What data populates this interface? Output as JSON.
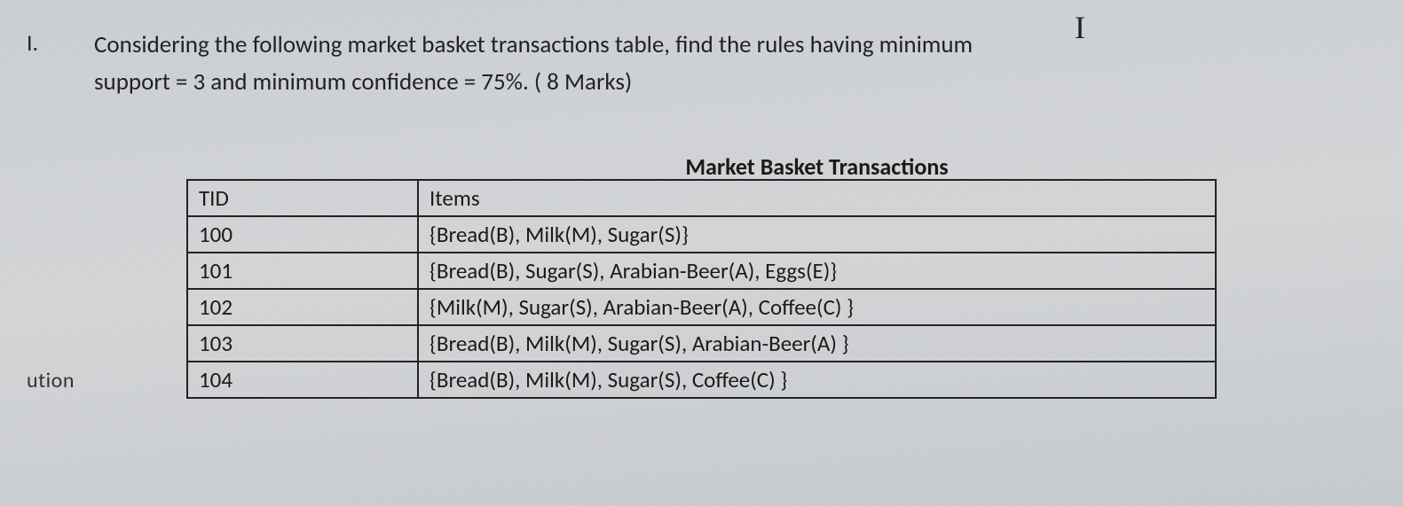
{
  "question": {
    "number": "I.",
    "text_line1": "Considering the following market basket transactions table, find the rules having minimum",
    "text_line2": "support = 3 and minimum confidence = 75%. ( 8 Marks)"
  },
  "cursor_glyph": "I",
  "table": {
    "title": "Market Basket Transactions",
    "headers": {
      "col1": "TID",
      "col2": "Items"
    },
    "rows": [
      {
        "tid": "100",
        "items": "{Bread(B), Milk(M), Sugar(S)}"
      },
      {
        "tid": "101",
        "items": "{Bread(B), Sugar(S), Arabian-Beer(A), Eggs(E)}"
      },
      {
        "tid": "102",
        "items": "{Milk(M), Sugar(S), Arabian-Beer(A), Coffee(C) }"
      },
      {
        "tid": "103",
        "items": "{Bread(B), Milk(M), Sugar(S), Arabian-Beer(A) }"
      },
      {
        "tid": "104",
        "items": "{Bread(B), Milk(M), Sugar(S), Coffee(C) }"
      }
    ]
  },
  "footer_fragment": "ution",
  "style": {
    "background_color": "#d0d3d5",
    "text_color": "#1a1a1a",
    "border_color": "#222222",
    "font_family": "Calibri",
    "title_fontsize": 26,
    "body_fontsize": 27,
    "cell_fontsize": 25
  }
}
